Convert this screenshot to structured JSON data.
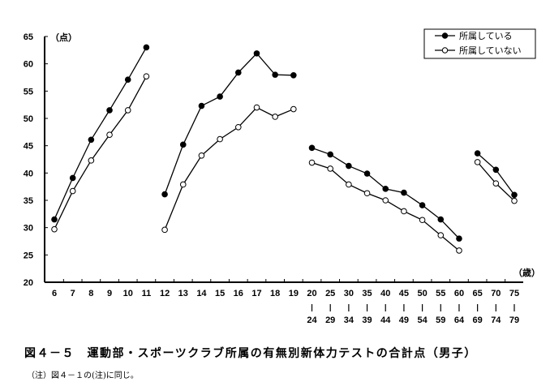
{
  "figure": {
    "title": "図４－５　運動部・スポーツクラブ所属の有無別新体力テストの合計点（男子）",
    "note": "（注）図４－１の(注)に同じ。"
  },
  "chart_data": {
    "type": "line",
    "title": "図４－５　運動部・スポーツクラブ所属の有無別新体力テストの合計点（男子）",
    "xlabel": "（歳）",
    "ylabel": "（点）",
    "ylim": [
      20,
      65
    ],
    "yticks": [
      20,
      25,
      30,
      35,
      40,
      45,
      50,
      55,
      60,
      65
    ],
    "grid": false,
    "legend_position": "top-right",
    "categories": [
      "6",
      "7",
      "8",
      "9",
      "10",
      "11",
      "12",
      "13",
      "14",
      "15",
      "16",
      "17",
      "18",
      "19",
      "20-24",
      "25-29",
      "30-34",
      "35-39",
      "40-44",
      "45-49",
      "50-54",
      "55-59",
      "60-64",
      "65-69",
      "70-74",
      "75-79"
    ],
    "segments": [
      [
        0,
        5
      ],
      [
        6,
        13
      ],
      [
        14,
        22
      ],
      [
        23,
        25
      ]
    ],
    "series": [
      {
        "name": "所属している",
        "marker": "filled-circle",
        "values": [
          31.5,
          39.1,
          46.1,
          51.5,
          57.1,
          63.0,
          36.1,
          45.2,
          52.3,
          54.0,
          58.4,
          61.9,
          58.0,
          57.9,
          44.6,
          43.4,
          41.3,
          39.9,
          37.1,
          36.4,
          34.1,
          31.5,
          28.0,
          43.6,
          40.6,
          36.0
        ]
      },
      {
        "name": "所属していない",
        "marker": "open-circle",
        "values": [
          29.7,
          36.7,
          42.3,
          47.0,
          51.5,
          57.7,
          29.6,
          37.9,
          43.2,
          46.2,
          48.4,
          52.0,
          50.3,
          51.7,
          41.9,
          40.8,
          37.9,
          36.3,
          35.0,
          33.0,
          31.4,
          28.6,
          25.8,
          42.0,
          38.1,
          34.9
        ]
      }
    ]
  }
}
